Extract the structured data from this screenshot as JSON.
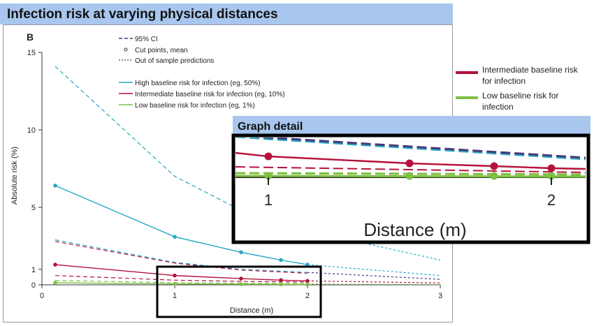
{
  "title": "Infection risk at varying physical distances",
  "panel_label": "B",
  "colors": {
    "high": "#24a9c4",
    "intermediate": "#b5123c",
    "low": "#7ec043",
    "title_bg": "#a8c6ee"
  },
  "legend": {
    "ci": "95% CI",
    "cut_points": "Cut points, mean",
    "oos": "Out of sample predictions",
    "high": "High baseline risk for infection (eg, 50%)",
    "intermediate": "Intermediate baseline risk for infection (eg, 10%)",
    "low": "Low baseline risk for infection (eg, 1%)"
  },
  "side_legend": {
    "intermediate": "Intermediate baseline risk for infection",
    "low": "Low baseline risk for infection"
  },
  "detail": {
    "title": "Graph detail",
    "xlabel": "Distance (m)",
    "ticks": [
      "1",
      "2"
    ]
  },
  "chart_data": {
    "type": "line",
    "xlabel": "Distance (m)",
    "ylabel": "Absolute risk (%)",
    "xlim": [
      0,
      3
    ],
    "ylim": [
      0,
      15
    ],
    "xticks": [
      "0",
      "1",
      "2",
      "3"
    ],
    "yticks": [
      "0",
      "1",
      "5",
      "10",
      "15"
    ],
    "series": [
      {
        "name": "High baseline risk for infection (eg, 50%)",
        "color": "#24a9c4",
        "x": [
          0.1,
          1.0,
          1.5,
          1.8,
          2.0
        ],
        "y": [
          6.4,
          3.1,
          2.1,
          1.6,
          1.3
        ]
      },
      {
        "name": "Intermediate baseline risk for infection (eg, 10%)",
        "color": "#b5123c",
        "x": [
          0.1,
          1.0,
          1.5,
          1.8,
          2.0
        ],
        "y": [
          1.3,
          0.6,
          0.4,
          0.3,
          0.25
        ]
      },
      {
        "name": "Low baseline risk for infection (eg, 1%)",
        "color": "#7ec043",
        "x": [
          0.1,
          1.0,
          1.5,
          1.8,
          2.0
        ],
        "y": [
          0.13,
          0.06,
          0.04,
          0.03,
          0.02
        ]
      }
    ],
    "ci_upper": [
      {
        "color": "#24a9c4",
        "x": [
          0.1,
          1.0,
          1.5,
          2.0
        ],
        "y": [
          14.1,
          7.0,
          4.8,
          3.5
        ]
      },
      {
        "color": "#24a9c4",
        "x": [
          0.1,
          1.0,
          1.5,
          2.0
        ],
        "y": [
          2.9,
          1.45,
          1.0,
          0.8
        ]
      },
      {
        "color": "#b5123c",
        "x": [
          0.1,
          1.0,
          1.5,
          2.0
        ],
        "y": [
          2.8,
          1.4,
          0.95,
          0.75
        ]
      },
      {
        "color": "#b5123c",
        "x": [
          0.1,
          1.0,
          1.5,
          2.0
        ],
        "y": [
          0.6,
          0.3,
          0.22,
          0.18
        ]
      },
      {
        "color": "#7ec043",
        "x": [
          0.1,
          1.0,
          1.5,
          2.0
        ],
        "y": [
          0.28,
          0.14,
          0.1,
          0.08
        ]
      }
    ],
    "out_of_sample": [
      {
        "color": "#24a9c4",
        "x": [
          2.0,
          3.0
        ],
        "y": [
          3.5,
          1.6
        ]
      },
      {
        "color": "#24a9c4",
        "x": [
          2.0,
          3.0
        ],
        "y": [
          1.3,
          0.6
        ]
      },
      {
        "color": "#473a78",
        "x": [
          2.0,
          3.0
        ],
        "y": [
          0.8,
          0.35
        ]
      },
      {
        "color": "#b5123c",
        "x": [
          2.0,
          3.0
        ],
        "y": [
          0.25,
          0.12
        ]
      },
      {
        "color": "#7ec043",
        "x": [
          2.0,
          3.0
        ],
        "y": [
          0.05,
          0.02
        ]
      }
    ]
  }
}
